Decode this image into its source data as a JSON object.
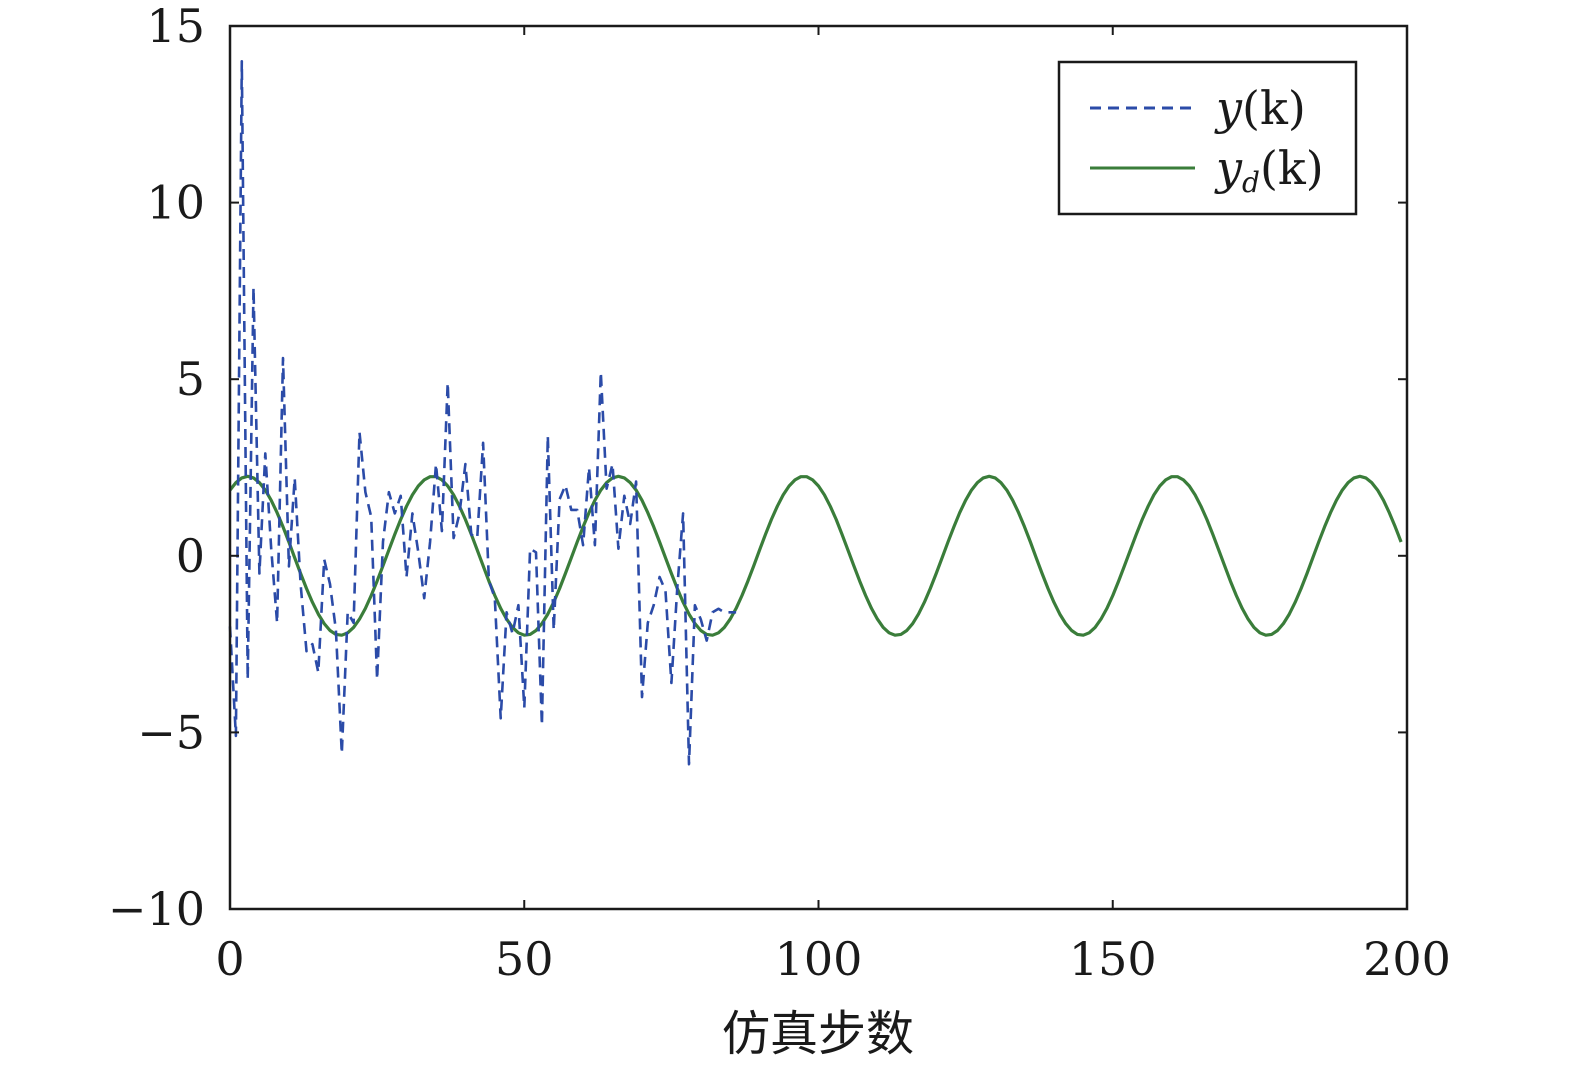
{
  "chart_data": {
    "type": "line",
    "title": "",
    "xlabel": "仿真步数",
    "ylabel": "",
    "xlim": [
      0,
      200
    ],
    "ylim": [
      -10,
      15
    ],
    "xticks": [
      0,
      50,
      100,
      150,
      200
    ],
    "yticks": [
      -10,
      -5,
      0,
      5,
      10,
      15
    ],
    "xtick_labels": [
      "0",
      "50",
      "100",
      "150",
      "200"
    ],
    "ytick_labels": [
      "−10",
      "−5",
      "0",
      "5",
      "10",
      "15"
    ],
    "grid": false,
    "legend_position": "top-right",
    "series": [
      {
        "name": "y(k)",
        "legend_main": "y",
        "legend_sub": "",
        "legend_tail": "(k)",
        "color": "#2b4ba8",
        "style": "dashed",
        "x": [
          0,
          1,
          2,
          3,
          4,
          5,
          6,
          7,
          8,
          9,
          10,
          11,
          12,
          13,
          14,
          15,
          16,
          17,
          18,
          19,
          20,
          21,
          22,
          23,
          24,
          25,
          26,
          27,
          28,
          29,
          30,
          31,
          32,
          33,
          34,
          35,
          36,
          37,
          38,
          39,
          40,
          41,
          42,
          43,
          44,
          45,
          46,
          47,
          48,
          49,
          50,
          51,
          52,
          53,
          54,
          55,
          56,
          57,
          58,
          59,
          60,
          61,
          62,
          63,
          64,
          65,
          66,
          67,
          68,
          69,
          70,
          71,
          72,
          73,
          74,
          75,
          76,
          77,
          78,
          79,
          80,
          81,
          82,
          83,
          84,
          85,
          86
        ],
        "y": [
          -2.0,
          -5.1,
          14.0,
          -3.5,
          7.6,
          -0.5,
          2.9,
          0.2,
          -1.9,
          5.6,
          -0.3,
          2.2,
          -0.8,
          -2.7,
          -2.5,
          -3.3,
          -0.1,
          -0.8,
          -2.1,
          -5.6,
          -1.6,
          -1.9,
          3.5,
          1.8,
          1.1,
          -3.5,
          0.4,
          1.8,
          1.2,
          1.7,
          -0.6,
          1.2,
          0.1,
          -1.2,
          0.4,
          2.6,
          0.7,
          4.9,
          0.5,
          1.2,
          2.6,
          0.6,
          0.5,
          3.2,
          -0.7,
          -1.2,
          -4.6,
          -1.6,
          -2.2,
          -1.4,
          -4.3,
          0.2,
          0.1,
          -4.8,
          3.4,
          -2.1,
          1.6,
          2.0,
          1.3,
          1.3,
          0.3,
          2.5,
          0.3,
          5.2,
          1.9,
          2.6,
          0.2,
          1.7,
          0.9,
          2.1,
          -4.0,
          -1.9,
          -1.4,
          -0.6,
          -1.0,
          -3.6,
          -0.9,
          1.2,
          -5.9,
          -1.4,
          -1.8,
          -2.4,
          -1.6,
          -1.5,
          -1.6,
          -1.6,
          -1.6
        ]
      },
      {
        "name": "yd(k)",
        "legend_main": "y",
        "legend_sub": "d",
        "legend_tail": "(k)",
        "color": "#3a7d3a",
        "style": "solid",
        "amplitude": 2.25,
        "period": 31.5,
        "peak_at": 3,
        "x_start": 0,
        "x_end": 199
      }
    ]
  }
}
